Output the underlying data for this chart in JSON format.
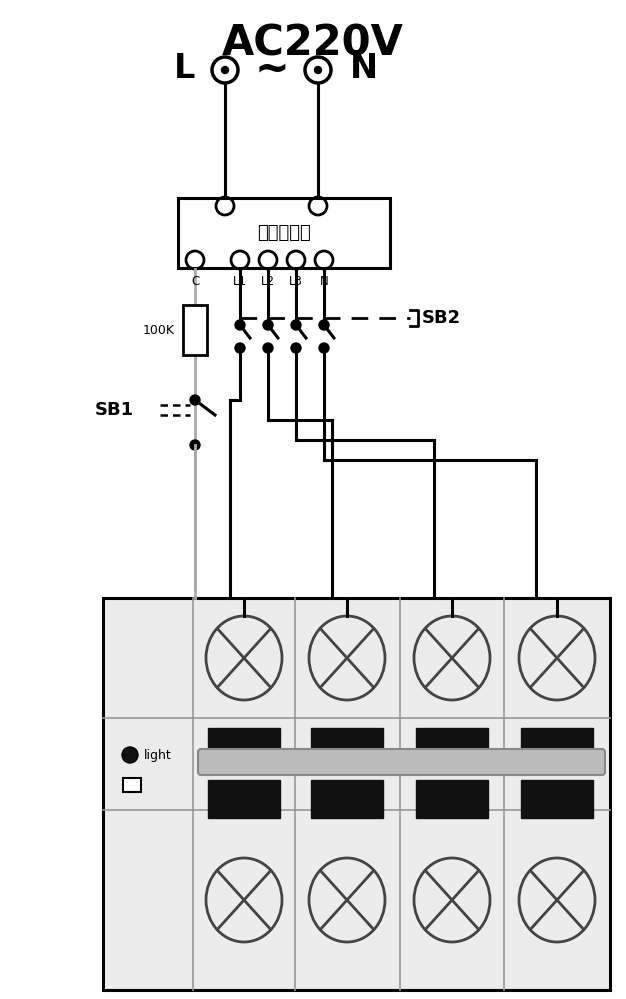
{
  "title": "AC220V",
  "bg_color": "#ffffff",
  "line_color": "#000000",
  "gray_color": "#aaaaaa",
  "dark_color": "#111111",
  "box_label": "分线端子排",
  "sb2_label": "SB2",
  "sb1_label": "SB1",
  "r_label": "100K",
  "light_label": "light",
  "figsize": [
    6.26,
    9.99
  ],
  "dpi": 100,
  "xlim": [
    0,
    626
  ],
  "ylim": [
    0,
    999
  ]
}
